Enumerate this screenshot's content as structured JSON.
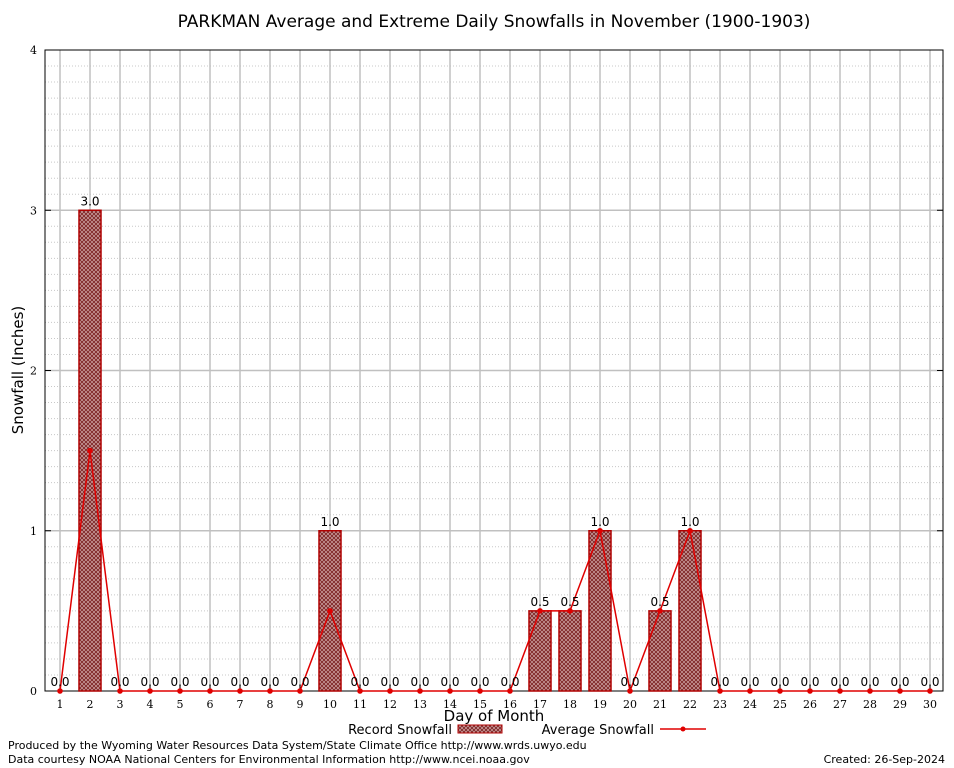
{
  "chart_data": {
    "type": "bar",
    "title": "PARKMAN Average and Extreme Daily Snowfalls in November (1900-1903)",
    "xlabel": "Day of Month",
    "ylabel": "Snowfall (Inches)",
    "ylim": [
      0,
      4
    ],
    "yticks": [
      "0",
      "1",
      "2",
      "3",
      "4"
    ],
    "categories": [
      "1",
      "2",
      "3",
      "4",
      "5",
      "6",
      "7",
      "8",
      "9",
      "10",
      "11",
      "12",
      "13",
      "14",
      "15",
      "16",
      "17",
      "18",
      "19",
      "20",
      "21",
      "22",
      "23",
      "24",
      "25",
      "26",
      "27",
      "28",
      "29",
      "30"
    ],
    "series": [
      {
        "name": "Record Snowfall",
        "type": "bar",
        "values": [
          0,
          3.0,
          0,
          0,
          0,
          0,
          0,
          0,
          0,
          1.0,
          0,
          0,
          0,
          0,
          0,
          0,
          0.5,
          0.5,
          1.0,
          0,
          0.5,
          1.0,
          0,
          0,
          0,
          0,
          0,
          0,
          0,
          0
        ],
        "labels": [
          "0.0",
          "3.0",
          "0.0",
          "0.0",
          "0.0",
          "0.0",
          "0.0",
          "0.0",
          "0.0",
          "1.0",
          "0.0",
          "0.0",
          "0.0",
          "0.0",
          "0.0",
          "0.0",
          "0.5",
          "0.5",
          "1.0",
          "0.0",
          "0.5",
          "1.0",
          "0.0",
          "0.0",
          "0.0",
          "0.0",
          "0.0",
          "0.0",
          "0.0",
          "0.0"
        ]
      },
      {
        "name": "Average Snowfall",
        "type": "line",
        "values": [
          0,
          1.5,
          0,
          0,
          0,
          0,
          0,
          0,
          0,
          0.5,
          0,
          0,
          0,
          0,
          0,
          0,
          0.5,
          0.5,
          1.0,
          0,
          0.5,
          1.0,
          0,
          0,
          0,
          0,
          0,
          0,
          0,
          0
        ]
      }
    ],
    "grid": true,
    "legend_position": "bottom-center",
    "colors": {
      "bar_fill": "#a06060",
      "bar_stroke": "#b00000",
      "line": "#e00000",
      "grid_major": "#c0c0c0",
      "grid_minor": "#c8c8c8"
    }
  },
  "footer": {
    "produced_by": "Produced by the Wyoming Water Resources Data System/State Climate Office http://www.wrds.uwyo.edu",
    "courtesy": "Data courtesy NOAA National Centers for Environmental Information http://www.ncei.noaa.gov",
    "created": "Created:  26-Sep-2024"
  }
}
